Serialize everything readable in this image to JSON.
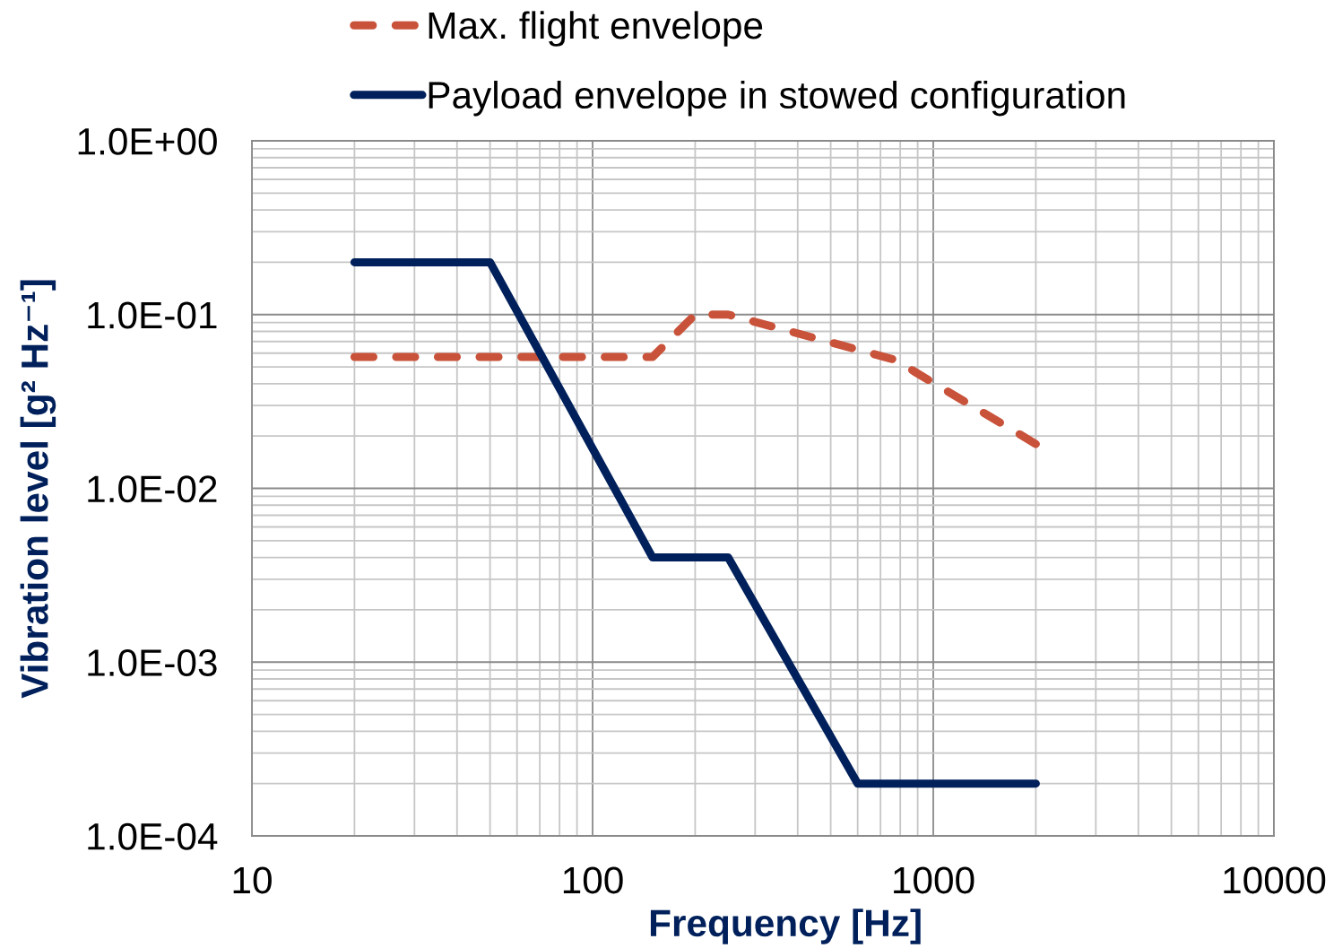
{
  "chart_data": {
    "type": "line",
    "xlabel": "Frequency [Hz]",
    "ylabel": "Vibration level [g² Hz⁻¹]",
    "log": "xy",
    "xlim": [
      10,
      10000
    ],
    "ylim": [
      0.0001,
      1
    ],
    "xticks": [
      10,
      100,
      1000,
      10000
    ],
    "yticks": [
      {
        "value": 1,
        "label": "1.0E+00"
      },
      {
        "value": 0.1,
        "label": "1.0E-01"
      },
      {
        "value": 0.01,
        "label": "1.0E-02"
      },
      {
        "value": 0.001,
        "label": "1.0E-03"
      },
      {
        "value": 0.0001,
        "label": "1.0E-04"
      }
    ],
    "grid": true,
    "legend": "top",
    "series": [
      {
        "name": "Max. flight envelope",
        "color": "#c9523a",
        "line_style": "dashed",
        "x": [
          20,
          150,
          200,
          250,
          770,
          2000
        ],
        "values": [
          0.057,
          0.057,
          0.1,
          0.1,
          0.055,
          0.018
        ]
      },
      {
        "name": "Payload envelope in stowed configuration",
        "color": "#00205b",
        "line_style": "solid",
        "x": [
          20,
          50,
          150,
          250,
          600,
          2000
        ],
        "values": [
          0.2,
          0.2,
          0.004,
          0.004,
          0.0002,
          0.0002
        ]
      }
    ]
  }
}
